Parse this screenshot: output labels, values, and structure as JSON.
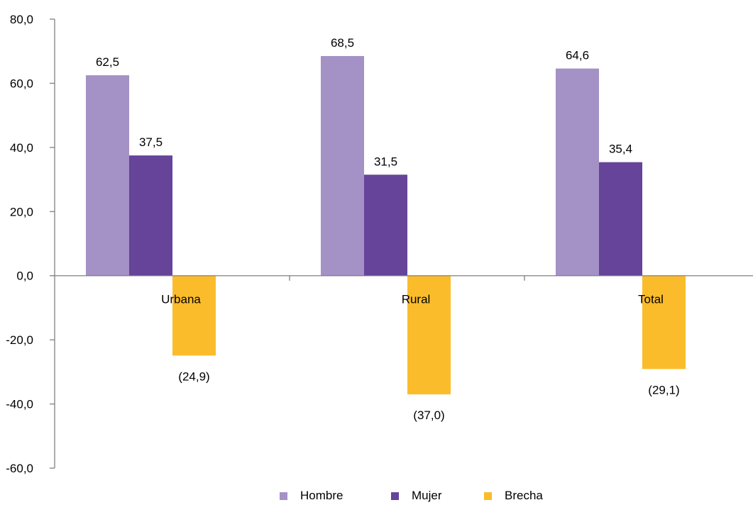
{
  "chart_data": {
    "type": "bar",
    "categories": [
      "Urbana",
      "Rural",
      "Total"
    ],
    "series": [
      {
        "name": "Hombre",
        "values": [
          62.5,
          68.5,
          64.6
        ],
        "labels": [
          "62,5",
          "68,5",
          "64,6"
        ],
        "color": "#a491c6"
      },
      {
        "name": "Mujer",
        "values": [
          37.5,
          31.5,
          35.4
        ],
        "labels": [
          "37,5",
          "31,5",
          "35,4"
        ],
        "color": "#654499"
      },
      {
        "name": "Brecha",
        "values": [
          -24.9,
          -37.0,
          -29.1
        ],
        "labels": [
          "(24,9)",
          "(37,0)",
          "(29,1)"
        ],
        "color": "#fbbc2b"
      }
    ],
    "y_ticks": [
      {
        "value": 80,
        "label": "80,0"
      },
      {
        "value": 60,
        "label": "60,0"
      },
      {
        "value": 40,
        "label": "40,0"
      },
      {
        "value": 20,
        "label": "20,0"
      },
      {
        "value": 0,
        "label": "0,0"
      },
      {
        "value": -20,
        "label": "-20,0"
      },
      {
        "value": -40,
        "label": "-40,0"
      },
      {
        "value": -60,
        "label": "-60,0"
      }
    ],
    "ylim": [
      -60,
      80
    ],
    "grid": false,
    "legend_position": "bottom",
    "title": "",
    "xlabel": "",
    "ylabel": ""
  }
}
